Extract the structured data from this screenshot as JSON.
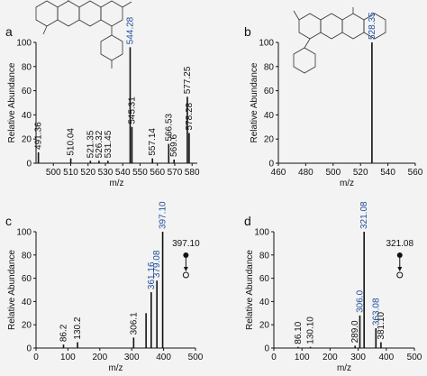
{
  "colors": {
    "label_black": "#111111",
    "label_blue": "#1f4e9c"
  },
  "chart_data": [
    {
      "panel": "a",
      "type": "bar",
      "xlabel": "m/z",
      "ylabel": "Relative Abundance",
      "xlim": [
        490,
        583
      ],
      "ylim": [
        0,
        100
      ],
      "xticks": [
        500,
        510,
        520,
        530,
        540,
        550,
        560,
        570,
        580
      ],
      "yticks": [
        0,
        20,
        40,
        60,
        80,
        100
      ],
      "peaks": [
        {
          "x": 491.36,
          "y": 9,
          "label": "491.36",
          "color": "black"
        },
        {
          "x": 510.04,
          "y": 4,
          "label": "510.04",
          "color": "black"
        },
        {
          "x": 521.35,
          "y": 2,
          "label": "521.35",
          "color": "black"
        },
        {
          "x": 526.32,
          "y": 2,
          "label": "526.32",
          "color": "black"
        },
        {
          "x": 531.45,
          "y": 2,
          "label": "531.45",
          "color": "black"
        },
        {
          "x": 544.28,
          "y": 96,
          "label": "544.28",
          "color": "blue"
        },
        {
          "x": 545.31,
          "y": 30,
          "label": "545.31",
          "color": "black"
        },
        {
          "x": 557.14,
          "y": 4,
          "label": "557.14",
          "color": "black"
        },
        {
          "x": 566.53,
          "y": 16,
          "label": "566.53",
          "color": "black"
        },
        {
          "x": 569.6,
          "y": 3,
          "label": "569.6",
          "color": "black"
        },
        {
          "x": 577.25,
          "y": 55,
          "label": "577.25",
          "color": "black"
        },
        {
          "x": 578.28,
          "y": 25,
          "label": "578.28",
          "color": "black"
        }
      ]
    },
    {
      "panel": "b",
      "type": "bar",
      "xlabel": "m/z",
      "ylabel": "Relative Abundance",
      "xlim": [
        460,
        560
      ],
      "ylim": [
        0,
        100
      ],
      "xticks": [
        460,
        480,
        500,
        520,
        540,
        560
      ],
      "yticks": [
        0,
        20,
        40,
        60,
        80,
        100
      ],
      "peaks": [
        {
          "x": 528.35,
          "y": 100,
          "label": "528.35",
          "color": "blue"
        }
      ]
    },
    {
      "panel": "c",
      "type": "bar",
      "xlabel": "m/z",
      "ylabel": "Relative Abundance",
      "xlim": [
        0,
        500
      ],
      "ylim": [
        0,
        100
      ],
      "xticks": [
        0,
        100,
        200,
        300,
        400,
        500
      ],
      "yticks": [
        0,
        20,
        40,
        60,
        80,
        100
      ],
      "peaks": [
        {
          "x": 86.2,
          "y": 3,
          "label": "86.2",
          "color": "black"
        },
        {
          "x": 130.2,
          "y": 5,
          "label": "130.2",
          "color": "black"
        },
        {
          "x": 306.1,
          "y": 9,
          "label": "306.1",
          "color": "black"
        },
        {
          "x": 345.0,
          "y": 30,
          "label": "",
          "color": "black"
        },
        {
          "x": 361.16,
          "y": 48,
          "label": "361.16",
          "color": "blue"
        },
        {
          "x": 379.08,
          "y": 58,
          "label": "379.08",
          "color": "blue"
        },
        {
          "x": 397.1,
          "y": 100,
          "label": "397.10",
          "color": "blue"
        }
      ],
      "precursor": {
        "x": 470,
        "label": "397.10"
      }
    },
    {
      "panel": "d",
      "type": "bar",
      "xlabel": "m/z",
      "ylabel": "Relative Abundance",
      "xlim": [
        0,
        500
      ],
      "ylim": [
        0,
        100
      ],
      "xticks": [
        0,
        100,
        200,
        300,
        400,
        500
      ],
      "yticks": [
        0,
        20,
        40,
        60,
        80,
        100
      ],
      "peaks": [
        {
          "x": 86.1,
          "y": 1,
          "label": "86.10",
          "color": "black"
        },
        {
          "x": 130.1,
          "y": 1,
          "label": "130.10",
          "color": "black"
        },
        {
          "x": 289.0,
          "y": 2,
          "label": "289.0",
          "color": "black"
        },
        {
          "x": 306.0,
          "y": 28,
          "label": "306.0",
          "color": "blue"
        },
        {
          "x": 321.08,
          "y": 100,
          "label": "321.08",
          "color": "blue"
        },
        {
          "x": 363.08,
          "y": 17,
          "label": "363.08",
          "color": "blue"
        },
        {
          "x": 381.1,
          "y": 5,
          "label": "381.10",
          "color": "black"
        }
      ],
      "precursor": {
        "x": 448,
        "label": "321.08"
      }
    }
  ]
}
